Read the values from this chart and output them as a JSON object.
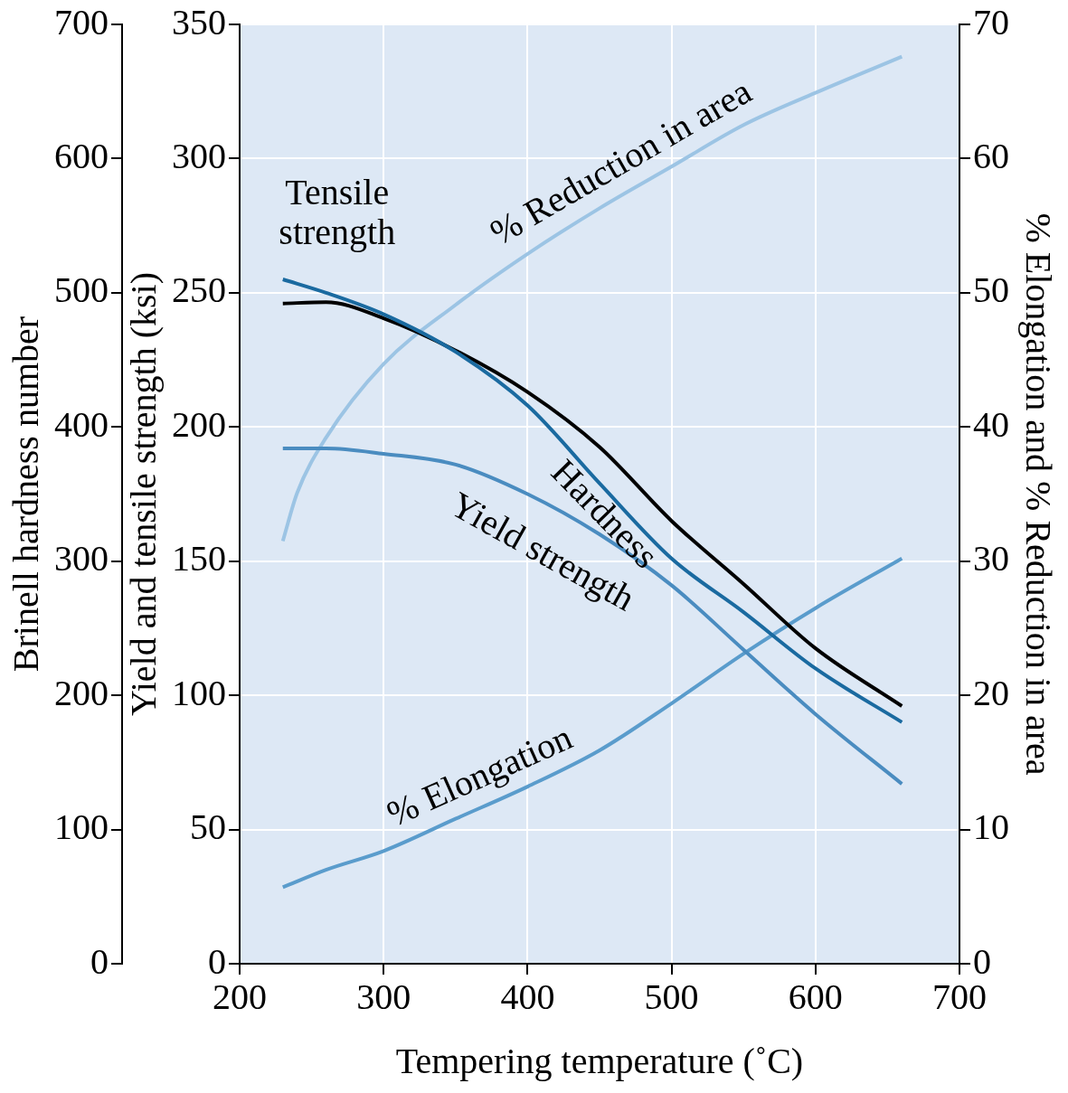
{
  "chart_data": {
    "type": "line",
    "xlabel": "Tempering temperature (˚C)",
    "ylabel": "Yield and tensile strength (ksi)",
    "y2label": "% Elongation and % Reduction in area",
    "y3label": "Brinell hardness number",
    "xlim": [
      200,
      700
    ],
    "xticks": [
      200,
      300,
      400,
      500,
      600,
      700
    ],
    "ylim": [
      0,
      350
    ],
    "yticks": [
      0,
      50,
      100,
      150,
      200,
      250,
      300,
      350
    ],
    "y2lim": [
      0,
      70
    ],
    "y2ticks": [
      0,
      10,
      20,
      30,
      40,
      50,
      60,
      70
    ],
    "y3lim": [
      0,
      700
    ],
    "y3ticks": [
      0,
      100,
      200,
      300,
      400,
      500,
      600,
      700
    ],
    "grid": true,
    "legend": false,
    "marker": "none",
    "line_style": "solid",
    "x": [
      230,
      260,
      300,
      350,
      400,
      450,
      500,
      550,
      600,
      660
    ],
    "series": [
      {
        "name": "Tensile strength",
        "color": "#1a6aa0",
        "values": [
          255,
          250,
          242,
          228,
          208,
          179,
          151,
          131,
          110,
          90
        ]
      },
      {
        "name": "Hardness",
        "color": "#000000",
        "axis": "y3",
        "values": [
          492,
          493,
          481,
          457,
          426,
          385,
          330,
          283,
          235,
          192
        ]
      },
      {
        "name": "Yield strength",
        "color": "#4a8cc0",
        "values": [
          192,
          192,
          190,
          186,
          175,
          160,
          141,
          117,
          93,
          67
        ]
      },
      {
        "name": "% Reduction in area",
        "color": "#9cc4e4",
        "axis": "y2",
        "x": [
          230,
          240,
          260,
          300,
          350,
          400,
          450,
          500,
          550,
          600,
          660
        ],
        "values": [
          31.5,
          35.1,
          39.2,
          44.7,
          49.1,
          52.9,
          56.3,
          59.4,
          62.5,
          64.9,
          67.6
        ]
      },
      {
        "name": "% Elongation",
        "color": "#5a9ccc",
        "axis": "y2",
        "values": [
          5.7,
          7,
          8.4,
          10.8,
          13.2,
          15.9,
          19.4,
          23.1,
          26.5,
          30.2
        ]
      }
    ]
  }
}
